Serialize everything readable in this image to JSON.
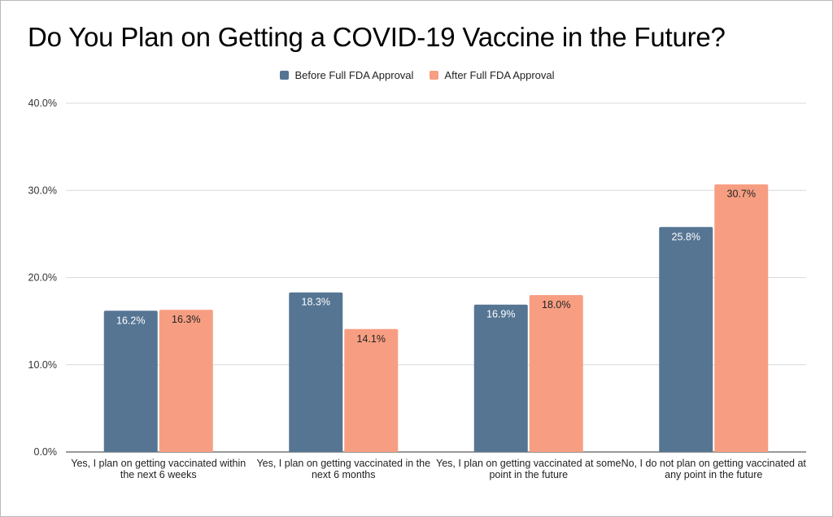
{
  "chart_data": {
    "type": "bar",
    "title": "Do You Plan on Getting a COVID-19 Vaccine in the Future?",
    "xlabel": "",
    "ylabel": "",
    "ylim": [
      0,
      40
    ],
    "yticks": [
      "0.0%",
      "10.0%",
      "20.0%",
      "30.0%",
      "40.0%"
    ],
    "ytick_values": [
      0,
      10,
      20,
      30,
      40
    ],
    "grid": true,
    "legend_position": "top-center",
    "categories": [
      "Yes, I plan on getting vaccinated within the next 6 weeks",
      "Yes, I plan on getting vaccinated in the next 6 months",
      "Yes, I plan on getting vaccinated at some point in the future",
      "No, I do not plan on getting vaccinated at any point in the future"
    ],
    "series": [
      {
        "name": "Before Full FDA Approval",
        "color": "#557593",
        "values": [
          16.2,
          18.3,
          16.9,
          25.8
        ],
        "labels": [
          "16.2%",
          "18.3%",
          "16.9%",
          "25.8%"
        ],
        "label_color": "#ffffff"
      },
      {
        "name": "After Full FDA Approval",
        "color": "#f79e82",
        "values": [
          16.3,
          14.1,
          18.0,
          30.7
        ],
        "labels": [
          "16.3%",
          "14.1%",
          "18.0%",
          "30.7%"
        ],
        "label_color": "#222222"
      }
    ]
  }
}
